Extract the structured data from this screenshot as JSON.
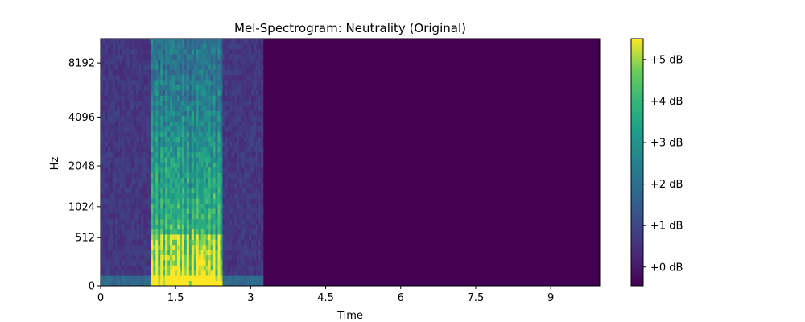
{
  "chart_data": {
    "type": "heatmap",
    "title": "Mel-Spectrogram: Neutrality (Original)",
    "xlabel": "Time",
    "ylabel": "Hz",
    "xlim": [
      0,
      9.98
    ],
    "x_ticks": [
      0,
      1.5,
      3,
      4.5,
      6,
      7.5,
      9
    ],
    "x_tick_labels": [
      "0",
      "1.5",
      "3",
      "4.5",
      "6",
      "7.5",
      "9"
    ],
    "y_scale": "mel",
    "y_ticks": [
      0,
      512,
      1024,
      2048,
      4096,
      8192
    ],
    "y_tick_labels": [
      "0",
      "512",
      "1024",
      "2048",
      "4096",
      "8192"
    ],
    "colormap": "viridis",
    "colorbar": {
      "range": [
        -0.45,
        5.5
      ],
      "ticks": [
        0,
        1,
        2,
        3,
        4,
        5
      ],
      "tick_labels": [
        "+0 dB",
        "+1 dB",
        "+2 dB",
        "+3 dB",
        "+4 dB",
        "+5 dB"
      ]
    },
    "activity": {
      "background_noise_end_s": 3.25,
      "speech_start_s": 0.97,
      "speech_end_s": 2.4,
      "silence_value": -0.45
    }
  }
}
